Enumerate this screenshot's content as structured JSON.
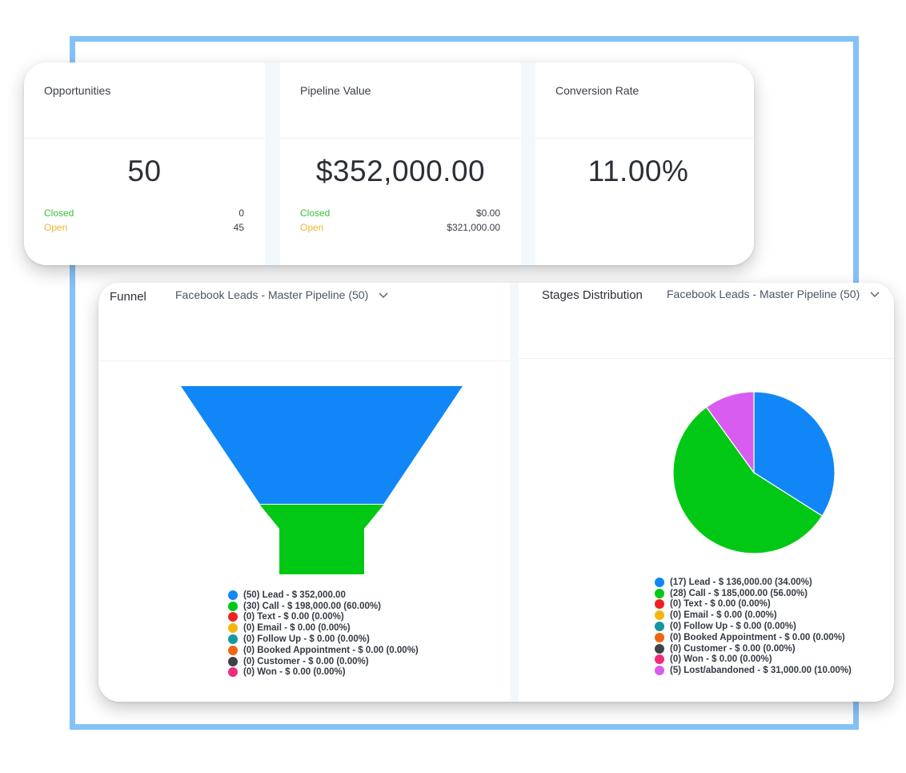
{
  "kpis": {
    "opportunities": {
      "title": "Opportunities",
      "value": "50",
      "closed_label": "Closed",
      "closed_value": "0",
      "open_label": "Open",
      "open_value": "45"
    },
    "pipeline": {
      "title": "Pipeline Value",
      "value": "$352,000.00",
      "closed_label": "Closed",
      "closed_value": "$0.00",
      "open_label": "Open",
      "open_value": "$321,000.00"
    },
    "conversion": {
      "title": "Conversion Rate",
      "value": "11.00%"
    }
  },
  "funnel": {
    "title": "Funnel",
    "pipeline_select": "Facebook Leads - Master Pipeline (50)",
    "legend": [
      {
        "label": "(50) Lead - $ 352,000.00",
        "color": "#1187f7"
      },
      {
        "label": "(30) Call - $ 198,000.00 (60.00%)",
        "color": "#00c814"
      },
      {
        "label": "(0) Text - $ 0.00 (0.00%)",
        "color": "#ef2121"
      },
      {
        "label": "(0) Email - $ 0.00 (0.00%)",
        "color": "#f6b50f"
      },
      {
        "label": "(0) Follow Up - $ 0.00 (0.00%)",
        "color": "#14989f"
      },
      {
        "label": "(0) Booked Appointment - $ 0.00 (0.00%)",
        "color": "#f06413"
      },
      {
        "label": "(0) Customer - $ 0.00 (0.00%)",
        "color": "#3f4347"
      },
      {
        "label": "(0) Won - $ 0.00 (0.00%)",
        "color": "#ee2c7a"
      }
    ]
  },
  "stages": {
    "title": "Stages Distribution",
    "pipeline_select": "Facebook Leads - Master Pipeline (50)",
    "legend": [
      {
        "label": "(17) Lead - $ 136,000.00 (34.00%)",
        "color": "#1187f7"
      },
      {
        "label": "(28) Call - $ 185,000.00 (56.00%)",
        "color": "#00c814"
      },
      {
        "label": "(0) Text - $ 0.00 (0.00%)",
        "color": "#ef2121"
      },
      {
        "label": "(0) Email - $ 0.00 (0.00%)",
        "color": "#f6b50f"
      },
      {
        "label": "(0) Follow Up - $ 0.00 (0.00%)",
        "color": "#14989f"
      },
      {
        "label": "(0) Booked Appointment - $ 0.00 (0.00%)",
        "color": "#f06413"
      },
      {
        "label": "(0) Customer - $ 0.00 (0.00%)",
        "color": "#3f4347"
      },
      {
        "label": "(0) Won - $ 0.00 (0.00%)",
        "color": "#ee2c7a"
      },
      {
        "label": "(5) Lost/abandoned - $ 31,000.00 (10.00%)",
        "color": "#d95cf0"
      }
    ]
  },
  "chart_data": [
    {
      "type": "funnel",
      "categories": [
        "Lead",
        "Call"
      ],
      "values": [
        50,
        30
      ],
      "colors": [
        "#1187f7",
        "#00c814"
      ]
    },
    {
      "type": "pie",
      "categories": [
        "Lead",
        "Call",
        "Lost/abandoned"
      ],
      "values": [
        34,
        56,
        10
      ],
      "colors": [
        "#1187f7",
        "#00c814",
        "#d95cf0"
      ]
    }
  ]
}
